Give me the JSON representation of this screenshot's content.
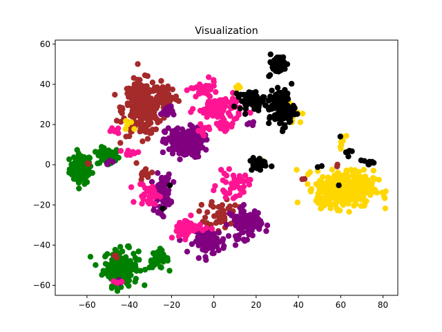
{
  "chart_data": {
    "type": "scatter",
    "title": "Visualization",
    "xlabel": "",
    "ylabel": "",
    "xlim": [
      -75,
      87
    ],
    "ylim": [
      -65,
      62
    ],
    "xticks": [
      -60,
      -40,
      -20,
      0,
      20,
      40,
      60,
      80
    ],
    "yticks": [
      -60,
      -40,
      -20,
      0,
      20,
      40,
      60
    ],
    "grid": false,
    "legend": "none",
    "series": [
      {
        "color": "#008000",
        "clusters": [
          {
            "center": [
              -63,
              -2
            ],
            "spread": [
              3.5,
              5
            ],
            "n": 90
          },
          {
            "center": [
              -50,
              4
            ],
            "spread": [
              3.5,
              3
            ],
            "n": 50
          },
          {
            "center": [
              -44,
              -51
            ],
            "spread": [
              5.5,
              6
            ],
            "n": 160
          },
          {
            "center": [
              -26,
              -47
            ],
            "spread": [
              3,
              3
            ],
            "n": 40
          },
          {
            "center": [
              -10,
              17
            ],
            "spread": [
              1,
              1
            ],
            "n": 2
          }
        ]
      },
      {
        "color": "#a52a2a",
        "clusters": [
          {
            "center": [
              -34,
              28
            ],
            "spread": [
              6,
              9
            ],
            "n": 260
          },
          {
            "center": [
              -23,
              34
            ],
            "spread": [
              4,
              5
            ],
            "n": 60
          },
          {
            "center": [
              -32,
              -5
            ],
            "spread": [
              2.5,
              2
            ],
            "n": 15
          },
          {
            "center": [
              4,
              -24
            ],
            "spread": [
              5,
              5
            ],
            "n": 45
          },
          {
            "center": [
              -2,
              -32
            ],
            "spread": [
              3,
              3
            ],
            "n": 10
          },
          {
            "center": [
              -47,
              -46
            ],
            "spread": [
              1,
              1
            ],
            "n": 3
          },
          {
            "center": [
              42,
              -7
            ],
            "spread": [
              1,
              1
            ],
            "n": 2
          },
          {
            "center": [
              58,
              0
            ],
            "spread": [
              1,
              1
            ],
            "n": 2
          },
          {
            "center": [
              -60,
              0
            ],
            "spread": [
              1,
              1
            ],
            "n": 2
          }
        ]
      },
      {
        "color": "#800080",
        "clusters": [
          {
            "center": [
              -14,
              11
            ],
            "spread": [
              6,
              5
            ],
            "n": 180
          },
          {
            "center": [
              -25,
              -14
            ],
            "spread": [
              3,
              6
            ],
            "n": 70
          },
          {
            "center": [
              -2,
              -38
            ],
            "spread": [
              5,
              4
            ],
            "n": 90
          },
          {
            "center": [
              15,
              -29
            ],
            "spread": [
              5,
              5
            ],
            "n": 90
          },
          {
            "center": [
              -22,
              27
            ],
            "spread": [
              2,
              2
            ],
            "n": 15
          },
          {
            "center": [
              -50,
              1
            ],
            "spread": [
              1.5,
              1.5
            ],
            "n": 4
          },
          {
            "center": [
              17,
              20
            ],
            "spread": [
              1.5,
              1.5
            ],
            "n": 4
          },
          {
            "center": [
              -44,
              -59
            ],
            "spread": [
              1,
              1
            ],
            "n": 2
          }
        ]
      },
      {
        "color": "#ff1493",
        "clusters": [
          {
            "center": [
              3,
              28
            ],
            "spread": [
              7,
              4
            ],
            "n": 80
          },
          {
            "center": [
              -5,
              37
            ],
            "spread": [
              4,
              3
            ],
            "n": 40
          },
          {
            "center": [
              -12,
              -31
            ],
            "spread": [
              5,
              3
            ],
            "n": 40
          },
          {
            "center": [
              9,
              -10
            ],
            "spread": [
              5,
              4
            ],
            "n": 40
          },
          {
            "center": [
              -30,
              -15
            ],
            "spread": [
              4,
              4
            ],
            "n": 30
          },
          {
            "center": [
              -40,
              6
            ],
            "spread": [
              3,
              1
            ],
            "n": 10
          },
          {
            "center": [
              -48,
              17
            ],
            "spread": [
              2,
              1
            ],
            "n": 6
          },
          {
            "center": [
              -45,
              -58
            ],
            "spread": [
              2,
              1
            ],
            "n": 5
          },
          {
            "center": [
              5,
              20
            ],
            "spread": [
              3,
              3
            ],
            "n": 20
          },
          {
            "center": [
              -5,
              18
            ],
            "spread": [
              3,
              2
            ],
            "n": 10
          },
          {
            "center": [
              -16,
              -34
            ],
            "spread": [
              2,
              2
            ],
            "n": 10
          }
        ]
      },
      {
        "color": "#ffd700",
        "clusters": [
          {
            "center": [
              62,
              -12
            ],
            "spread": [
              9,
              6
            ],
            "n": 380
          },
          {
            "center": [
              37,
              25
            ],
            "spread": [
              3,
              3
            ],
            "n": 15
          },
          {
            "center": [
              61,
              12
            ],
            "spread": [
              2,
              2
            ],
            "n": 8
          },
          {
            "center": [
              20,
              2
            ],
            "spread": [
              2,
              2
            ],
            "n": 5
          },
          {
            "center": [
              -40,
              19
            ],
            "spread": [
              2,
              2
            ],
            "n": 5
          },
          {
            "center": [
              11,
              39
            ],
            "spread": [
              1.5,
              1
            ],
            "n": 4
          }
        ]
      },
      {
        "color": "#000000",
        "clusters": [
          {
            "center": [
              30,
              50
            ],
            "spread": [
              3,
              3
            ],
            "n": 50
          },
          {
            "center": [
              18,
              32
            ],
            "spread": [
              4,
              3
            ],
            "n": 60
          },
          {
            "center": [
              32,
              28
            ],
            "spread": [
              4,
              6
            ],
            "n": 120
          },
          {
            "center": [
              21,
              0
            ],
            "spread": [
              3,
              2.5
            ],
            "n": 20
          },
          {
            "center": [
              73,
              1
            ],
            "spread": [
              3,
              1.2
            ],
            "n": 12
          },
          {
            "center": [
              64,
              6
            ],
            "spread": [
              1,
              2
            ],
            "n": 5
          },
          {
            "center": [
              60,
              14
            ],
            "spread": [
              0.5,
              0.5
            ],
            "n": 1
          },
          {
            "center": [
              59,
              -10
            ],
            "spread": [
              0.3,
              0.3
            ],
            "n": 1
          },
          {
            "center": [
              -21,
              -10
            ],
            "spread": [
              0.3,
              0.3
            ],
            "n": 1
          },
          {
            "center": [
              -24,
              -22
            ],
            "spread": [
              0.3,
              0.3
            ],
            "n": 1
          },
          {
            "center": [
              50,
              -1
            ],
            "spread": [
              1,
              1
            ],
            "n": 2
          }
        ]
      }
    ]
  }
}
